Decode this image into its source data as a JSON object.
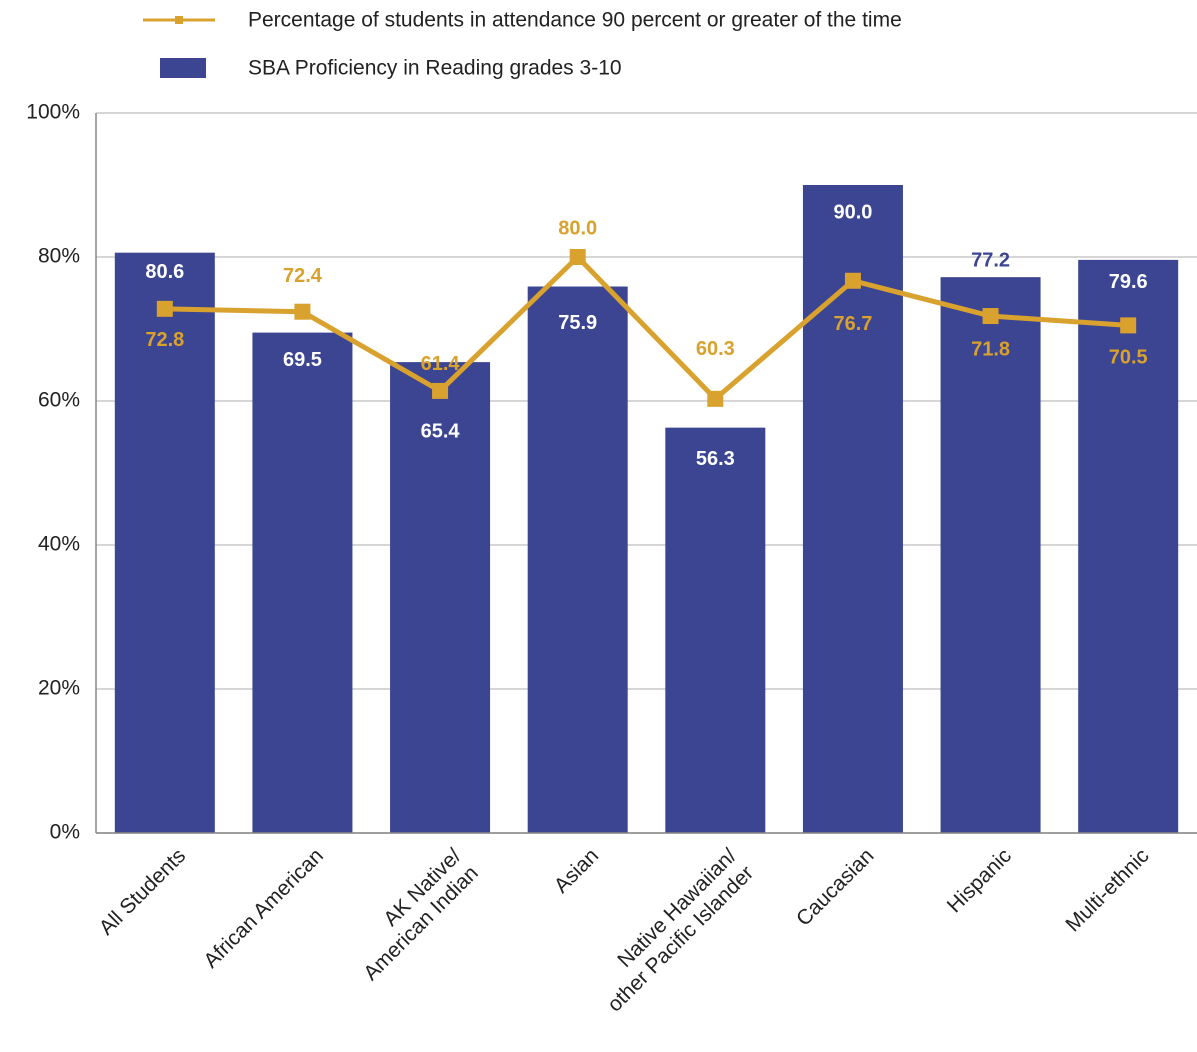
{
  "chart_data": {
    "type": "bar",
    "categories": [
      "All Students",
      "African American",
      "AK Native/ American Indian",
      "Asian",
      "Native Hawaiian/ other Pacific Islander",
      "Caucasian",
      "Hispanic",
      "Multi-ethnic"
    ],
    "series": [
      {
        "name": "SBA Proficiency in Reading grades 3-10",
        "type": "bar",
        "color": "#3b4591",
        "values": [
          80.6,
          69.5,
          65.4,
          75.9,
          56.3,
          90.0,
          77.2,
          79.6
        ],
        "value_labels": [
          "80.6",
          "69.5",
          "65.4",
          "75.9",
          "56.3",
          "90.0",
          "77.2",
          "79.6"
        ]
      },
      {
        "name": "Percentage of students in attendance 90 percent or greater of the time",
        "type": "line",
        "color": "#d9a12d",
        "values": [
          72.8,
          72.4,
          61.4,
          80.0,
          60.3,
          76.7,
          71.8,
          70.5
        ],
        "value_labels": [
          "72.8",
          "72.4",
          "61.4",
          "80.0",
          "60.3",
          "76.7",
          "71.8",
          "70.5"
        ]
      }
    ],
    "ylim": [
      0,
      100
    ],
    "yticks": [
      {
        "value": 0,
        "label": "0%"
      },
      {
        "value": 20,
        "label": "20%"
      },
      {
        "value": 40,
        "label": "40%"
      },
      {
        "value": 60,
        "label": "60%"
      },
      {
        "value": 80,
        "label": "80%"
      },
      {
        "value": 100,
        "label": "100%"
      }
    ],
    "grid": true,
    "legend": "top"
  }
}
